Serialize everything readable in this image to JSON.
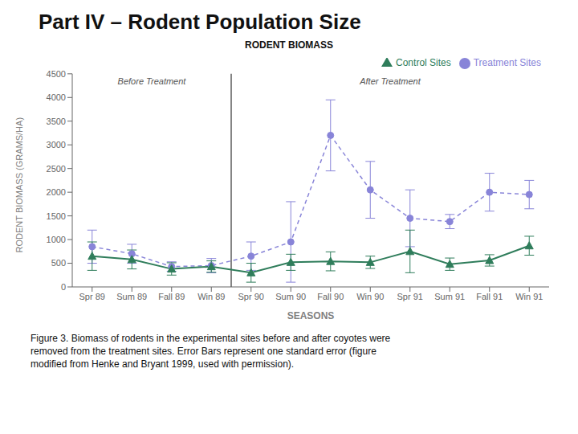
{
  "chart_data": {
    "type": "line",
    "title": "Part IV – Rodent Population Size",
    "subtitle": "RODENT BIOMASS",
    "xlabel": "SEASONS",
    "ylabel": "RODENT BIOMASS (GRAMS/HA)",
    "categories": [
      "Spr 89",
      "Sum 89",
      "Fall 89",
      "Win 89",
      "Spr 90",
      "Sum 90",
      "Fall 90",
      "Win 90",
      "Spr 91",
      "Sum 91",
      "Fall 91",
      "Win 91"
    ],
    "series": [
      {
        "name": "Treatment Sites",
        "color": "#8884d8",
        "marker": "circle",
        "line_style": "dashed",
        "values": [
          850,
          700,
          430,
          450,
          650,
          950,
          3200,
          2050,
          1450,
          1380,
          2000,
          1950
        ],
        "errors": [
          350,
          200,
          100,
          150,
          300,
          850,
          750,
          600,
          600,
          150,
          400,
          300
        ]
      },
      {
        "name": "Control Sites",
        "color": "#2f7d5b",
        "marker": "triangle",
        "line_style": "solid",
        "values": [
          650,
          580,
          380,
          430,
          300,
          520,
          540,
          520,
          750,
          480,
          560,
          870
        ],
        "errors": [
          300,
          200,
          130,
          120,
          200,
          170,
          200,
          130,
          450,
          130,
          120,
          200
        ]
      }
    ],
    "annotations": [
      {
        "text": "Before Treatment",
        "from": "Spr 89",
        "to": "Win 89"
      },
      {
        "text": "After Treatment",
        "from": "Spr 90",
        "to": "Win 91"
      }
    ],
    "caption": [
      "Figure 3.  Biomass of rodents in the experimental sites before and after coyotes were",
      "removed from the treatment sites. Error Bars represent one standard error (figure",
      "modified from Henke and Bryant 1999, used with permission)."
    ],
    "ylim": [
      0,
      4500
    ],
    "yticks": [
      0,
      500,
      1000,
      1500,
      2000,
      2500,
      3000,
      3500,
      4000,
      4500
    ],
    "grid": false,
    "legend": "upper right"
  }
}
